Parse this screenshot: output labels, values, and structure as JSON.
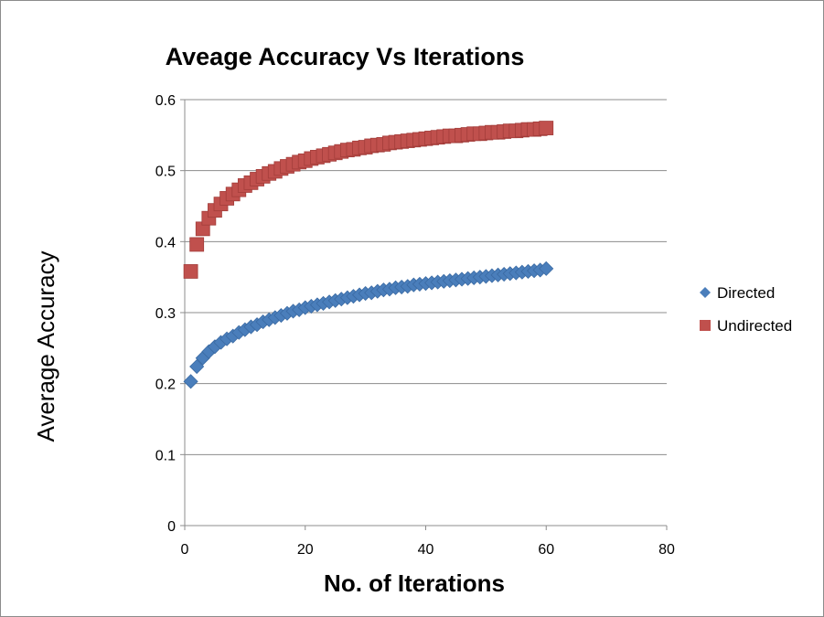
{
  "chart_data": {
    "type": "scatter",
    "title": "Aveage Accuracy Vs Iterations",
    "xlabel": "No. of Iterations",
    "ylabel": "Average Accuracy",
    "xlim": [
      0,
      80
    ],
    "ylim": [
      0,
      0.6
    ],
    "x_ticks": [
      "0",
      "20",
      "40",
      "60",
      "80"
    ],
    "y_ticks": [
      "0",
      "0.1",
      "0.2",
      "0.3",
      "0.4",
      "0.5",
      "0.6"
    ],
    "grid": "horizontal",
    "legend_position": "right",
    "x": [
      1,
      2,
      3,
      4,
      5,
      6,
      7,
      8,
      9,
      10,
      11,
      12,
      13,
      14,
      15,
      16,
      17,
      18,
      19,
      20,
      21,
      22,
      23,
      24,
      25,
      26,
      27,
      28,
      29,
      30,
      31,
      32,
      33,
      34,
      35,
      36,
      37,
      38,
      39,
      40,
      41,
      42,
      43,
      44,
      45,
      46,
      47,
      48,
      49,
      50,
      51,
      52,
      53,
      54,
      55,
      56,
      57,
      58,
      59,
      60
    ],
    "series": [
      {
        "name": "Directed",
        "marker": "diamond",
        "color": "#4a7ebb",
        "values": [
          0.203,
          0.224,
          0.236,
          0.245,
          0.252,
          0.258,
          0.263,
          0.267,
          0.272,
          0.276,
          0.28,
          0.283,
          0.287,
          0.29,
          0.293,
          0.296,
          0.299,
          0.302,
          0.304,
          0.307,
          0.309,
          0.311,
          0.313,
          0.315,
          0.317,
          0.319,
          0.321,
          0.323,
          0.325,
          0.327,
          0.328,
          0.33,
          0.332,
          0.333,
          0.335,
          0.336,
          0.337,
          0.339,
          0.34,
          0.341,
          0.342,
          0.343,
          0.344,
          0.345,
          0.346,
          0.347,
          0.348,
          0.349,
          0.35,
          0.351,
          0.352,
          0.353,
          0.354,
          0.355,
          0.356,
          0.357,
          0.358,
          0.359,
          0.36,
          0.362
        ]
      },
      {
        "name": "Undirected",
        "marker": "square",
        "color": "#c0504d",
        "values": [
          0.358,
          0.396,
          0.418,
          0.433,
          0.444,
          0.453,
          0.461,
          0.467,
          0.473,
          0.479,
          0.483,
          0.488,
          0.492,
          0.496,
          0.499,
          0.503,
          0.506,
          0.509,
          0.512,
          0.514,
          0.517,
          0.519,
          0.521,
          0.523,
          0.525,
          0.527,
          0.529,
          0.53,
          0.532,
          0.533,
          0.535,
          0.536,
          0.537,
          0.539,
          0.54,
          0.541,
          0.542,
          0.543,
          0.544,
          0.545,
          0.546,
          0.547,
          0.548,
          0.549,
          0.549,
          0.55,
          0.551,
          0.552,
          0.552,
          0.553,
          0.554,
          0.554,
          0.555,
          0.556,
          0.556,
          0.557,
          0.558,
          0.558,
          0.559,
          0.56
        ]
      }
    ]
  }
}
